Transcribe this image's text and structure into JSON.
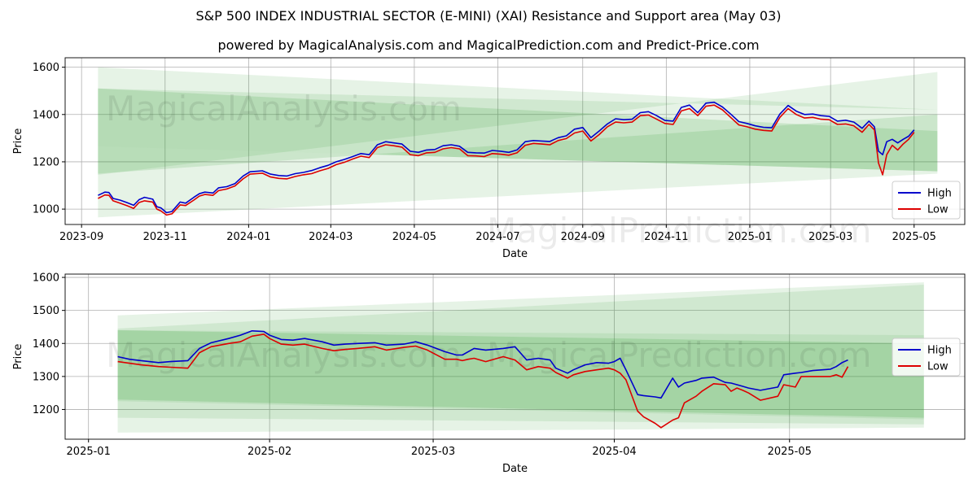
{
  "title": "S&P 500 INDEX INDUSTRIAL SECTOR (E-MINI) (XAI) Resistance and Support area (May 03)",
  "subtitle": "powered by MagicalAnalysis.com and MagicalPrediction.com and Predict-Price.com",
  "watermarks": [
    "MagicalAnalysis.com",
    "MagicalPrediction.com"
  ],
  "colors": {
    "high": "#0000cc",
    "low": "#dd0000",
    "band": "#2e9e2e",
    "grid": "#b0b0b0"
  },
  "chart_data": [
    {
      "type": "line",
      "xlabel": "Date",
      "ylabel": "Price",
      "legend": {
        "position": "right",
        "items": [
          "High",
          "Low"
        ]
      },
      "x_ticks": [
        "2023-09",
        "2023-11",
        "2024-01",
        "2024-03",
        "2024-05",
        "2024-07",
        "2024-09",
        "2024-11",
        "2025-01",
        "2025-03",
        "2025-05"
      ],
      "x_tick_days": [
        0,
        61,
        122,
        182,
        243,
        304,
        366,
        427,
        488,
        547,
        608
      ],
      "y_ticks": [
        1000,
        1200,
        1400,
        1600
      ],
      "xlim_days": [
        -12,
        645
      ],
      "ylim": [
        935,
        1640
      ],
      "bands": [
        {
          "x": [
            12,
            625
          ],
          "top": [
            1600,
            1420
          ],
          "bottom": [
            965,
            1150
          ],
          "opacity": 0.12
        },
        {
          "x": [
            12,
            625
          ],
          "top": [
            1510,
            1420
          ],
          "bottom": [
            1145,
            1580
          ],
          "opacity": 0.12
        },
        {
          "x": [
            12,
            625
          ],
          "top": [
            1265,
            1160
          ],
          "bottom": [
            1150,
            1400
          ],
          "opacity": 0.14
        },
        {
          "x": [
            12,
            625
          ],
          "top": [
            1510,
            1330
          ],
          "bottom": [
            1265,
            1160
          ],
          "opacity": 0.16
        }
      ],
      "series": [
        {
          "name": "High",
          "x": [
            12,
            17,
            20,
            23,
            28,
            33,
            38,
            42,
            46,
            52,
            55,
            58,
            62,
            66,
            72,
            76,
            82,
            86,
            90,
            96,
            100,
            106,
            112,
            118,
            123,
            128,
            132,
            138,
            144,
            150,
            156,
            162,
            168,
            174,
            180,
            186,
            192,
            198,
            204,
            210,
            216,
            222,
            228,
            234,
            240,
            246,
            252,
            258,
            264,
            270,
            276,
            282,
            288,
            294,
            300,
            306,
            312,
            318,
            324,
            330,
            336,
            342,
            348,
            354,
            360,
            366,
            372,
            378,
            384,
            390,
            396,
            402,
            408,
            414,
            420,
            426,
            432,
            438,
            444,
            450,
            456,
            462,
            468,
            474,
            480,
            486,
            492,
            498,
            504,
            510,
            516,
            522,
            528,
            534,
            540,
            546,
            552,
            558,
            564,
            570,
            575,
            579,
            582,
            585,
            588,
            592,
            596,
            600,
            604,
            608
          ],
          "values": [
            1058,
            1072,
            1070,
            1045,
            1038,
            1028,
            1016,
            1040,
            1050,
            1042,
            1010,
            1005,
            985,
            990,
            1030,
            1025,
            1050,
            1065,
            1072,
            1068,
            1090,
            1095,
            1108,
            1140,
            1158,
            1160,
            1162,
            1148,
            1142,
            1140,
            1150,
            1155,
            1163,
            1175,
            1185,
            1200,
            1210,
            1222,
            1235,
            1230,
            1272,
            1285,
            1280,
            1275,
            1245,
            1240,
            1250,
            1252,
            1268,
            1272,
            1266,
            1240,
            1238,
            1237,
            1248,
            1245,
            1240,
            1250,
            1285,
            1290,
            1288,
            1286,
            1302,
            1310,
            1338,
            1345,
            1302,
            1330,
            1360,
            1382,
            1378,
            1380,
            1408,
            1412,
            1395,
            1375,
            1372,
            1430,
            1440,
            1408,
            1448,
            1452,
            1432,
            1402,
            1370,
            1362,
            1352,
            1346,
            1344,
            1402,
            1438,
            1414,
            1400,
            1402,
            1395,
            1392,
            1372,
            1376,
            1368,
            1342,
            1372,
            1348,
            1245,
            1230,
            1285,
            1295,
            1280,
            1295,
            1308,
            1335
          ]
        },
        {
          "name": "Low",
          "x": [
            12,
            17,
            20,
            23,
            28,
            33,
            38,
            42,
            46,
            52,
            55,
            58,
            62,
            66,
            72,
            76,
            82,
            86,
            90,
            96,
            100,
            106,
            112,
            118,
            123,
            128,
            132,
            138,
            144,
            150,
            156,
            162,
            168,
            174,
            180,
            186,
            192,
            198,
            204,
            210,
            216,
            222,
            228,
            234,
            240,
            246,
            252,
            258,
            264,
            270,
            276,
            282,
            288,
            294,
            300,
            306,
            312,
            318,
            324,
            330,
            336,
            342,
            348,
            354,
            360,
            366,
            372,
            378,
            384,
            390,
            396,
            402,
            408,
            414,
            420,
            426,
            432,
            438,
            444,
            450,
            456,
            462,
            468,
            474,
            480,
            486,
            492,
            498,
            504,
            510,
            516,
            522,
            528,
            534,
            540,
            546,
            552,
            558,
            564,
            570,
            575,
            579,
            582,
            585,
            588,
            592,
            596,
            600,
            604,
            608
          ],
          "values": [
            1045,
            1060,
            1058,
            1035,
            1025,
            1015,
            1003,
            1028,
            1035,
            1030,
            1000,
            992,
            975,
            980,
            1018,
            1015,
            1038,
            1055,
            1062,
            1058,
            1078,
            1085,
            1098,
            1128,
            1148,
            1150,
            1152,
            1136,
            1130,
            1128,
            1138,
            1145,
            1150,
            1162,
            1172,
            1188,
            1198,
            1212,
            1224,
            1218,
            1260,
            1272,
            1268,
            1262,
            1230,
            1226,
            1238,
            1240,
            1255,
            1260,
            1255,
            1226,
            1225,
            1222,
            1235,
            1232,
            1228,
            1238,
            1270,
            1278,
            1275,
            1272,
            1290,
            1298,
            1322,
            1330,
            1288,
            1315,
            1348,
            1368,
            1365,
            1368,
            1395,
            1398,
            1380,
            1362,
            1358,
            1415,
            1425,
            1395,
            1435,
            1440,
            1420,
            1388,
            1356,
            1348,
            1338,
            1333,
            1330,
            1388,
            1425,
            1400,
            1385,
            1388,
            1380,
            1378,
            1358,
            1360,
            1352,
            1325,
            1358,
            1335,
            1195,
            1145,
            1230,
            1270,
            1250,
            1275,
            1295,
            1325
          ]
        }
      ]
    },
    {
      "type": "line",
      "xlabel": "Date",
      "ylabel": "Price",
      "legend": {
        "position": "right",
        "items": [
          "High",
          "Low"
        ]
      },
      "x_ticks": [
        "2025-01",
        "2025-02",
        "2025-03",
        "2025-04",
        "2025-05"
      ],
      "x_tick_days": [
        0,
        31,
        59,
        90,
        120
      ],
      "y_ticks": [
        1200,
        1300,
        1400,
        1500,
        1600
      ],
      "xlim_days": [
        -4,
        150
      ],
      "ylim": [
        1110,
        1610
      ],
      "bands": [
        {
          "x": [
            5,
            143
          ],
          "top": [
            1485,
            1585
          ],
          "bottom": [
            1130,
            1145
          ],
          "opacity": 0.12
        },
        {
          "x": [
            5,
            143
          ],
          "top": [
            1445,
            1578
          ],
          "bottom": [
            1175,
            1155
          ],
          "opacity": 0.12
        },
        {
          "x": [
            5,
            143
          ],
          "top": [
            1440,
            1400
          ],
          "bottom": [
            1230,
            1175
          ],
          "opacity": 0.18
        },
        {
          "x": [
            5,
            143
          ],
          "top": [
            1440,
            1425
          ],
          "bottom": [
            1225,
            1170
          ],
          "opacity": 0.1
        }
      ],
      "series": [
        {
          "name": "High",
          "x": [
            5,
            7,
            9,
            12,
            14,
            17,
            19,
            21,
            24,
            26,
            28,
            30,
            31,
            33,
            35,
            37,
            40,
            42,
            44,
            46,
            49,
            51,
            54,
            56,
            58,
            61,
            63,
            64,
            65,
            66,
            68,
            71,
            73,
            75,
            77,
            79,
            80,
            82,
            83,
            85,
            87,
            89,
            90,
            91,
            92,
            94,
            95,
            97,
            98,
            100,
            101,
            102,
            104,
            105,
            107,
            109,
            110,
            111,
            112,
            113,
            115,
            118,
            119,
            121,
            122,
            124,
            127,
            128,
            129,
            130
          ],
          "values": [
            1360,
            1352,
            1348,
            1342,
            1345,
            1348,
            1385,
            1402,
            1415,
            1425,
            1438,
            1436,
            1425,
            1412,
            1410,
            1415,
            1405,
            1395,
            1398,
            1400,
            1402,
            1395,
            1398,
            1405,
            1395,
            1375,
            1365,
            1365,
            1375,
            1385,
            1380,
            1385,
            1390,
            1350,
            1355,
            1350,
            1325,
            1310,
            1320,
            1335,
            1342,
            1340,
            1345,
            1355,
            1320,
            1245,
            1242,
            1238,
            1235,
            1295,
            1268,
            1280,
            1288,
            1295,
            1298,
            1282,
            1280,
            1275,
            1270,
            1265,
            1258,
            1268,
            1305,
            1310,
            1312,
            1318,
            1322,
            1330,
            1342,
            1350
          ]
        },
        {
          "name": "Low",
          "x": [
            5,
            7,
            9,
            12,
            14,
            17,
            19,
            21,
            24,
            26,
            28,
            30,
            31,
            33,
            35,
            37,
            40,
            42,
            44,
            46,
            49,
            51,
            54,
            56,
            58,
            61,
            63,
            64,
            65,
            66,
            68,
            71,
            73,
            75,
            77,
            79,
            80,
            82,
            83,
            85,
            87,
            89,
            90,
            91,
            92,
            94,
            95,
            97,
            98,
            100,
            101,
            102,
            104,
            105,
            107,
            109,
            110,
            111,
            112,
            113,
            115,
            118,
            119,
            121,
            122,
            124,
            127,
            128,
            129,
            130
          ],
          "values": [
            1345,
            1340,
            1335,
            1330,
            1328,
            1325,
            1372,
            1390,
            1400,
            1405,
            1422,
            1428,
            1415,
            1398,
            1395,
            1398,
            1385,
            1378,
            1382,
            1385,
            1390,
            1380,
            1388,
            1392,
            1380,
            1352,
            1352,
            1348,
            1352,
            1355,
            1345,
            1360,
            1350,
            1320,
            1330,
            1325,
            1312,
            1295,
            1305,
            1315,
            1320,
            1325,
            1320,
            1310,
            1290,
            1195,
            1178,
            1158,
            1145,
            1168,
            1175,
            1220,
            1240,
            1255,
            1278,
            1275,
            1255,
            1265,
            1258,
            1250,
            1228,
            1240,
            1275,
            1268,
            1300,
            1300,
            1300,
            1305,
            1298,
            1330
          ]
        }
      ]
    }
  ]
}
